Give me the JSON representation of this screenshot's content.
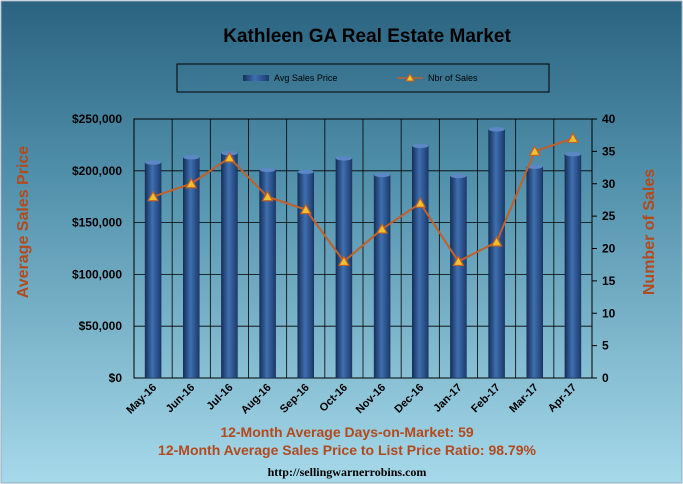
{
  "colors": {
    "background_top": "#2a6380",
    "background_bottom": "#a6d9ea",
    "bar": "#2e5590",
    "line": "#c0602a",
    "marker_fill": "#f2c12e",
    "axis_title": "#b24a1e",
    "footer_text": "#b24a1e"
  },
  "chart_data": {
    "type": "bar",
    "title": "Kathleen GA Real Estate Market",
    "categories": [
      "May-16",
      "Jun-16",
      "Jul-16",
      "Aug-16",
      "Sep-16",
      "Oct-16",
      "Nov-16",
      "Dec-16",
      "Jan-17",
      "Feb-17",
      "Mar-17",
      "Apr-17"
    ],
    "series": [
      {
        "name": "Avg Sales Price",
        "type": "bar",
        "axis": "left",
        "values": [
          208000,
          213000,
          217000,
          201000,
          199000,
          212000,
          196000,
          224000,
          195000,
          240000,
          204000,
          216000
        ]
      },
      {
        "name": "Nbr of Sales",
        "type": "line",
        "axis": "right",
        "values": [
          28,
          30,
          34,
          28,
          26,
          18,
          23,
          27,
          18,
          21,
          35,
          37
        ]
      }
    ],
    "ylabel": "Average Sales Price",
    "y2label": "Number of Sales",
    "ylim": [
      0,
      250000
    ],
    "y2lim": [
      0,
      40
    ],
    "yticks": [
      "$0",
      "$50,000",
      "$100,000",
      "$150,000",
      "$200,000",
      "$250,000"
    ],
    "y2ticks": [
      "0",
      "5",
      "10",
      "15",
      "20",
      "25",
      "30",
      "35",
      "40"
    ],
    "grid": true,
    "legend_position": "top"
  },
  "footer": {
    "line1": "12-Month Average Days-on-Market: 59",
    "line2": "12-Month Average Sales Price to List Price Ratio: 98.79%",
    "url": "http://sellingwarnerrobins.com"
  }
}
